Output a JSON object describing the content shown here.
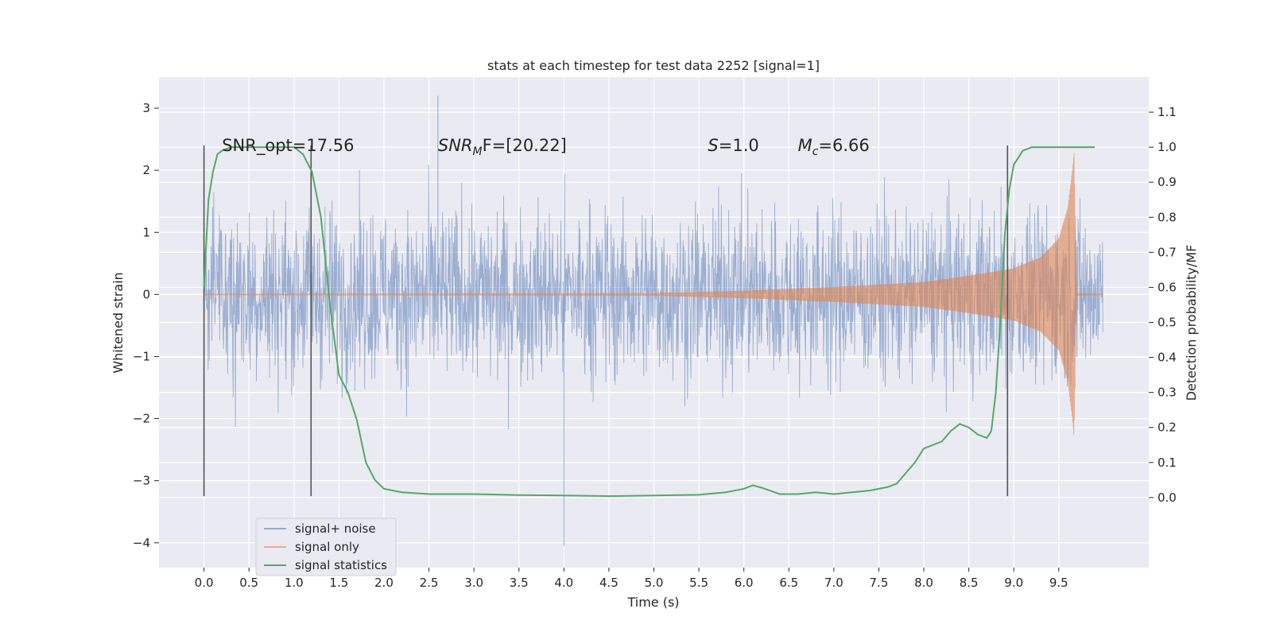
{
  "chart_data": {
    "type": "line",
    "title": "stats at each timestep for test data 2252 [signal=1]",
    "xlabel": "Time (s)",
    "ylabel": "Whitened strain",
    "ylabel_right": "Detection probability/MF",
    "xlim": [
      -0.5,
      10.5
    ],
    "ylim": [
      -4.4,
      3.5
    ],
    "ylim_right": [
      -0.2,
      1.2
    ],
    "xticks": [
      0.0,
      0.5,
      1.0,
      1.5,
      2.0,
      2.5,
      3.0,
      3.5,
      4.0,
      4.5,
      5.0,
      5.5,
      6.0,
      6.5,
      7.0,
      7.5,
      8.0,
      8.5,
      9.0,
      9.5
    ],
    "xtick_labels": [
      "0.0",
      "0.5",
      "1.0",
      "1.5",
      "2.0",
      "2.5",
      "3.0",
      "3.5",
      "4.0",
      "4.5",
      "5.0",
      "5.5",
      "6.0",
      "6.5",
      "7.0",
      "7.5",
      "8.0",
      "8.5",
      "9.0",
      "9.5"
    ],
    "yticks": [
      -4,
      -3,
      -2,
      -1,
      0,
      1,
      2,
      3
    ],
    "ytick_labels": [
      "−4",
      "−3",
      "−2",
      "−1",
      "0",
      "1",
      "2",
      "3"
    ],
    "yticks_right": [
      0.0,
      0.1,
      0.2,
      0.3,
      0.4,
      0.5,
      0.6,
      0.7,
      0.8,
      0.9,
      1.0,
      1.1
    ],
    "ytick_labels_right": [
      "0.0",
      "0.1",
      "0.2",
      "0.3",
      "0.4",
      "0.5",
      "0.6",
      "0.7",
      "0.8",
      "0.9",
      "1.0",
      "1.1"
    ],
    "grid": true,
    "legend_position": "lower-left",
    "colors": {
      "background": "#eaeaf2",
      "signal_noise": "#4c72b0",
      "signal_only": "#dd8452",
      "signal_statistics": "#55a868",
      "vlines": "#555555"
    },
    "series": [
      {
        "name": "signal+ noise",
        "kind": "noise",
        "x_range": [
          0.0,
          9.99
        ],
        "envelope_typical": 1.6,
        "peak_min": -4.05,
        "peak_max": 3.2
      },
      {
        "name": "signal only",
        "kind": "chirp",
        "x_range": [
          0.0,
          9.99
        ],
        "merger_time": 9.67,
        "envelope_points": [
          [
            0.0,
            0.01
          ],
          [
            5.0,
            0.02
          ],
          [
            6.0,
            0.06
          ],
          [
            7.0,
            0.12
          ],
          [
            8.0,
            0.2
          ],
          [
            8.5,
            0.3
          ],
          [
            9.0,
            0.42
          ],
          [
            9.3,
            0.6
          ],
          [
            9.5,
            0.9
          ],
          [
            9.6,
            1.4
          ],
          [
            9.65,
            2.0
          ],
          [
            9.67,
            2.3
          ],
          [
            9.7,
            0.02
          ],
          [
            9.99,
            0.01
          ]
        ]
      },
      {
        "name": "signal statistics",
        "kind": "line",
        "axis": "right",
        "x": [
          0.0,
          0.05,
          0.1,
          0.15,
          0.2,
          0.3,
          0.5,
          0.7,
          0.9,
          1.0,
          1.1,
          1.2,
          1.3,
          1.4,
          1.5,
          1.6,
          1.7,
          1.8,
          1.9,
          2.0,
          2.2,
          2.5,
          3.0,
          3.5,
          4.0,
          4.5,
          5.0,
          5.5,
          5.8,
          6.0,
          6.1,
          6.2,
          6.4,
          6.6,
          6.8,
          7.0,
          7.2,
          7.4,
          7.6,
          7.7,
          7.8,
          7.9,
          8.0,
          8.1,
          8.2,
          8.3,
          8.4,
          8.5,
          8.6,
          8.7,
          8.75,
          8.8,
          8.85,
          8.9,
          8.95,
          9.0,
          9.1,
          9.2,
          9.5,
          9.9
        ],
        "y": [
          0.6,
          0.85,
          0.93,
          0.98,
          0.99,
          1.0,
          1.0,
          1.0,
          1.0,
          1.0,
          0.98,
          0.93,
          0.8,
          0.55,
          0.35,
          0.3,
          0.22,
          0.1,
          0.05,
          0.025,
          0.015,
          0.01,
          0.01,
          0.007,
          0.006,
          0.004,
          0.006,
          0.008,
          0.015,
          0.025,
          0.035,
          0.028,
          0.01,
          0.01,
          0.015,
          0.01,
          0.015,
          0.02,
          0.03,
          0.04,
          0.07,
          0.1,
          0.14,
          0.15,
          0.16,
          0.19,
          0.21,
          0.2,
          0.18,
          0.17,
          0.19,
          0.3,
          0.5,
          0.75,
          0.88,
          0.95,
          0.99,
          1.0,
          1.0,
          1.0
        ]
      }
    ],
    "vlines": [
      0.0,
      1.19,
      8.93
    ],
    "vline_yrange": [
      -3.25,
      2.4
    ],
    "annotations": [
      {
        "x": 0.2,
        "y": 2.4,
        "text": "SNR_opt=17.56"
      },
      {
        "x": 2.6,
        "y": 2.4,
        "base": "SNR",
        "sub": "M",
        "rest": "F=[20.22]"
      },
      {
        "x": 5.6,
        "y": 2.4,
        "base": "S",
        "sub": "",
        "rest": "=1.0"
      },
      {
        "x": 6.6,
        "y": 2.4,
        "base": "M",
        "sub": "c",
        "rest": "=6.66"
      }
    ]
  }
}
